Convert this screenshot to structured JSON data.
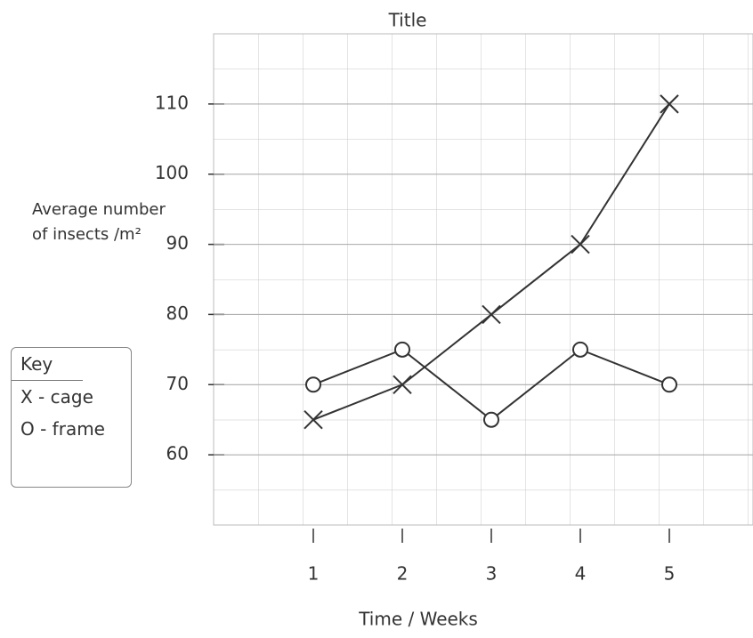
{
  "chart_data": {
    "type": "line",
    "title": "Title",
    "y_label": "Average number of insects /m²",
    "x_label": "Time / Weeks",
    "legend_title": "Key",
    "x": [
      1,
      2,
      3,
      4,
      5
    ],
    "series": [
      {
        "name": "X - cage",
        "color": "#333333",
        "marker": "x",
        "values": [
          65,
          70,
          80,
          90,
          110
        ]
      },
      {
        "name": "O - frame",
        "color": "#333333",
        "marker": "o",
        "values": [
          70,
          75,
          65,
          75,
          70
        ]
      }
    ],
    "xlim": [
      -0.12,
      5.94
    ],
    "xticks": [
      1,
      2,
      3,
      4,
      5
    ],
    "ylim": [
      50,
      120
    ],
    "yticks": [
      60,
      70,
      80,
      90,
      100,
      110
    ],
    "grid": true,
    "legend": "left"
  }
}
